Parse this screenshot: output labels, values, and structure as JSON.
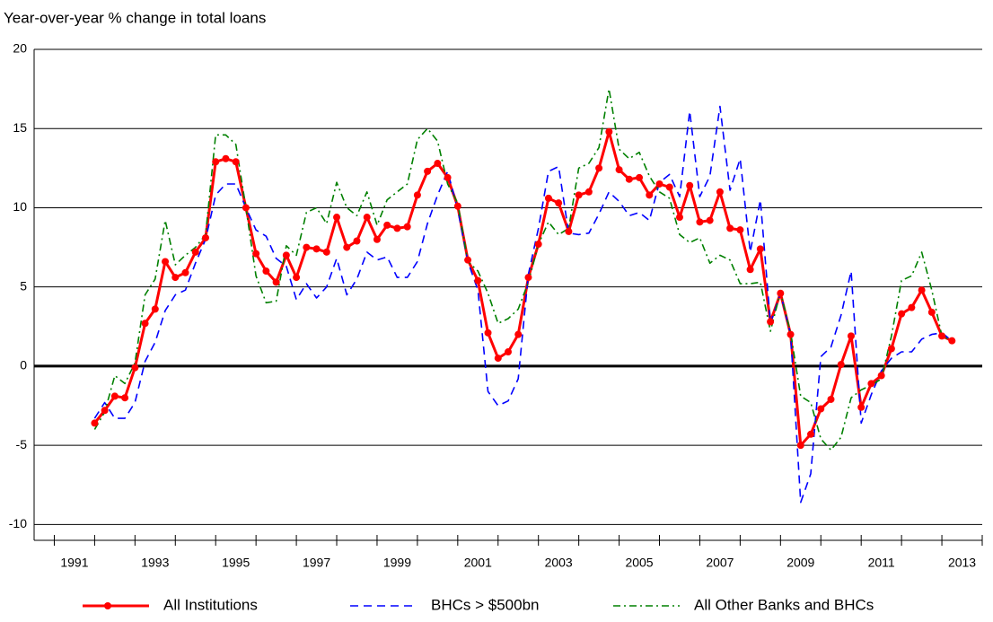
{
  "chart_data": {
    "type": "line",
    "title": "Year-over-year % change in total loans",
    "x": [
      1992,
      1992.25,
      1992.5,
      1992.75,
      1993,
      1993.25,
      1993.5,
      1993.75,
      1994,
      1994.25,
      1994.5,
      1994.75,
      1995,
      1995.25,
      1995.5,
      1995.75,
      1996,
      1996.25,
      1996.5,
      1996.75,
      1997,
      1997.25,
      1997.5,
      1997.75,
      1998,
      1998.25,
      1998.5,
      1998.75,
      1999,
      1999.25,
      1999.5,
      1999.75,
      2000,
      2000.25,
      2000.5,
      2000.75,
      2001,
      2001.25,
      2001.5,
      2001.75,
      2002,
      2002.25,
      2002.5,
      2002.75,
      2003,
      2003.25,
      2003.5,
      2003.75,
      2004,
      2004.25,
      2004.5,
      2004.75,
      2005,
      2005.25,
      2005.5,
      2005.75,
      2006,
      2006.25,
      2006.5,
      2006.75,
      2007,
      2007.25,
      2007.5,
      2007.75,
      2008,
      2008.25,
      2008.5,
      2008.75,
      2009,
      2009.25,
      2009.5,
      2009.75,
      2010,
      2010.25,
      2010.5,
      2010.75,
      2011,
      2011.25,
      2011.5,
      2011.75,
      2012,
      2012.25,
      2012.5,
      2012.75,
      2013,
      2013.25
    ],
    "series": [
      {
        "name": "All Institutions",
        "color": "#ff0000",
        "style": "solid-markers",
        "values": [
          -3.6,
          -2.8,
          -1.9,
          -2.0,
          -0.1,
          2.7,
          3.6,
          6.6,
          5.6,
          5.9,
          7.2,
          8.1,
          12.9,
          13.1,
          12.9,
          10.0,
          7.1,
          6.0,
          5.3,
          7.0,
          5.6,
          7.5,
          7.4,
          7.2,
          9.4,
          7.5,
          7.9,
          9.4,
          8.0,
          8.9,
          8.7,
          8.8,
          10.8,
          12.3,
          12.8,
          11.9,
          10.1,
          6.7,
          5.4,
          2.1,
          0.5,
          0.9,
          2.0,
          5.6,
          7.7,
          10.6,
          10.3,
          8.5,
          10.8,
          11.0,
          12.5,
          14.8,
          12.4,
          11.8,
          11.9,
          10.8,
          11.5,
          11.3,
          9.4,
          11.4,
          9.1,
          9.2,
          11.0,
          8.7,
          8.6,
          6.1,
          7.4,
          2.8,
          4.6,
          2.0,
          -5.0,
          -4.3,
          -2.7,
          -2.1,
          0.1,
          1.9,
          -2.6,
          -1.1,
          -0.6,
          1.1,
          3.3,
          3.7,
          4.8,
          3.4,
          1.9,
          1.6
        ]
      },
      {
        "name": "BHCs > $500bn",
        "color": "#0000ff",
        "style": "dashed",
        "values": [
          -3.3,
          -2.3,
          -3.3,
          -3.3,
          -2.3,
          0.3,
          1.5,
          3.5,
          4.5,
          4.8,
          6.5,
          8.0,
          10.8,
          11.5,
          11.5,
          10.0,
          8.6,
          8.2,
          6.8,
          6.3,
          4.2,
          5.2,
          4.3,
          5.0,
          6.8,
          4.5,
          5.5,
          7.2,
          6.7,
          6.9,
          5.6,
          5.6,
          6.6,
          9.0,
          10.8,
          12.3,
          9.9,
          6.6,
          4.8,
          -1.6,
          -2.5,
          -2.2,
          -0.8,
          5.8,
          8.7,
          12.3,
          12.6,
          8.4,
          8.3,
          8.4,
          9.6,
          11.0,
          10.4,
          9.5,
          9.7,
          9.2,
          11.6,
          12.1,
          10.7,
          16.1,
          10.7,
          12.0,
          16.4,
          11.1,
          13.1,
          7.2,
          10.5,
          2.7,
          4.6,
          2.0,
          -8.6,
          -6.8,
          0.6,
          1.2,
          3.2,
          6.0,
          -3.6,
          -1.8,
          -0.3,
          0.5,
          0.9,
          0.9,
          1.7,
          2.0,
          2.1,
          1.6
        ]
      },
      {
        "name": "All Other Banks and BHCs",
        "color": "#008000",
        "style": "dashdot",
        "values": [
          -4.0,
          -2.9,
          -0.6,
          -1.1,
          0.2,
          4.5,
          5.5,
          9.2,
          6.4,
          7.0,
          7.5,
          8.3,
          14.6,
          14.6,
          14.0,
          10.0,
          5.7,
          4.0,
          4.1,
          7.6,
          7.0,
          9.7,
          10.0,
          9.0,
          11.6,
          10.0,
          9.5,
          11.0,
          8.9,
          10.5,
          11.0,
          11.5,
          14.3,
          15.0,
          14.2,
          11.5,
          10.3,
          6.6,
          6.0,
          4.6,
          2.7,
          3.0,
          3.6,
          5.3,
          7.7,
          9.1,
          8.3,
          8.7,
          12.5,
          12.8,
          13.8,
          17.5,
          13.7,
          13.1,
          13.5,
          12.0,
          11.0,
          10.6,
          8.3,
          7.8,
          8.1,
          6.5,
          7.0,
          6.7,
          5.2,
          5.2,
          5.3,
          2.2,
          4.7,
          2.1,
          -1.9,
          -2.3,
          -4.6,
          -5.3,
          -4.5,
          -2.0,
          -1.5,
          -1.2,
          -0.8,
          1.9,
          5.4,
          5.7,
          7.2,
          4.8,
          1.9,
          1.6
        ]
      }
    ],
    "xlim": [
      1990.5,
      2014
    ],
    "xticks": [
      {
        "value": 1991.5,
        "label": "1991"
      },
      {
        "value": 1993.5,
        "label": "1993"
      },
      {
        "value": 1995.5,
        "label": "1995"
      },
      {
        "value": 1997.5,
        "label": "1997"
      },
      {
        "value": 1999.5,
        "label": "1999"
      },
      {
        "value": 2001.5,
        "label": "2001"
      },
      {
        "value": 2003.5,
        "label": "2003"
      },
      {
        "value": 2005.5,
        "label": "2005"
      },
      {
        "value": 2007.5,
        "label": "2007"
      },
      {
        "value": 2009.5,
        "label": "2009"
      },
      {
        "value": 2011.5,
        "label": "2011"
      },
      {
        "value": 2013.5,
        "label": "2013"
      }
    ],
    "ylim": [
      -11,
      20
    ],
    "yticks": [
      -10,
      -5,
      0,
      5,
      10,
      15,
      20
    ],
    "grid": true,
    "zero_line": true,
    "legend": "bottom"
  }
}
